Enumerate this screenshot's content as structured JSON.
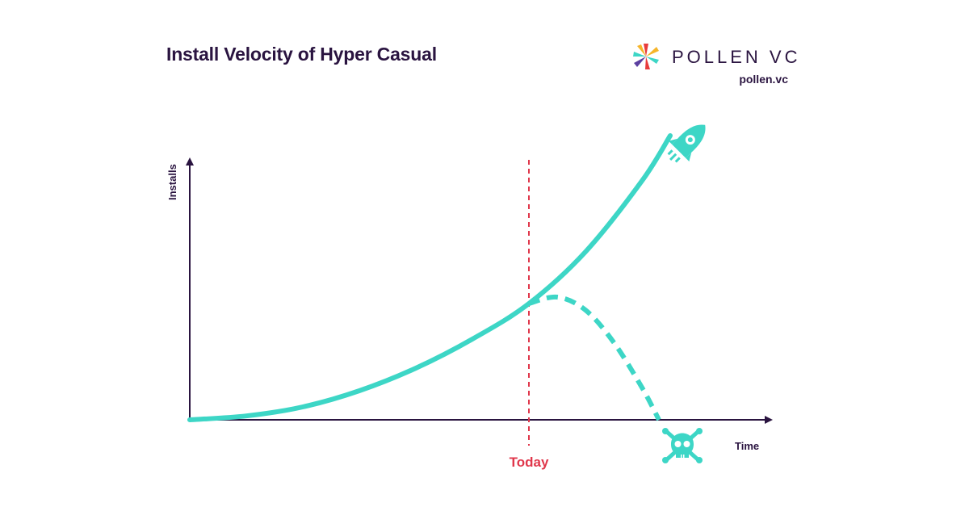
{
  "title": "Install Velocity of Hyper Casual",
  "brand": {
    "name": "POLLEN VC",
    "url": "pollen.vc",
    "logo_icon": "pollen-star-logo",
    "logo_colors": [
      "#e83b3b",
      "#f6b52a",
      "#3dd6c6",
      "#5b3fa0"
    ]
  },
  "colors": {
    "curve": "#3dd6c6",
    "today_line": "#e0374b",
    "axis": "#2a1440"
  },
  "icons": {
    "growth_end": "rocket-icon",
    "decline_end": "skull-crossbones-icon"
  },
  "chart_data": {
    "type": "line",
    "title": "Install Velocity of Hyper Casual",
    "xlabel": "Time",
    "ylabel": "Installs",
    "ticks": "none",
    "grid": false,
    "marker": {
      "label": "Today",
      "x": 0.6
    },
    "series": [
      {
        "style": "solid",
        "x": [
          0,
          0.1,
          0.2,
          0.3,
          0.4,
          0.5,
          0.6,
          0.7,
          0.8,
          0.85
        ],
        "y": [
          0,
          0.012,
          0.04,
          0.09,
          0.16,
          0.25,
          0.36,
          0.52,
          0.74,
          0.88
        ]
      },
      {
        "style": "dashed",
        "x": [
          0.6,
          0.65,
          0.7,
          0.75,
          0.8,
          0.83
        ],
        "y": [
          0.36,
          0.38,
          0.34,
          0.24,
          0.1,
          0.0
        ]
      }
    ]
  }
}
